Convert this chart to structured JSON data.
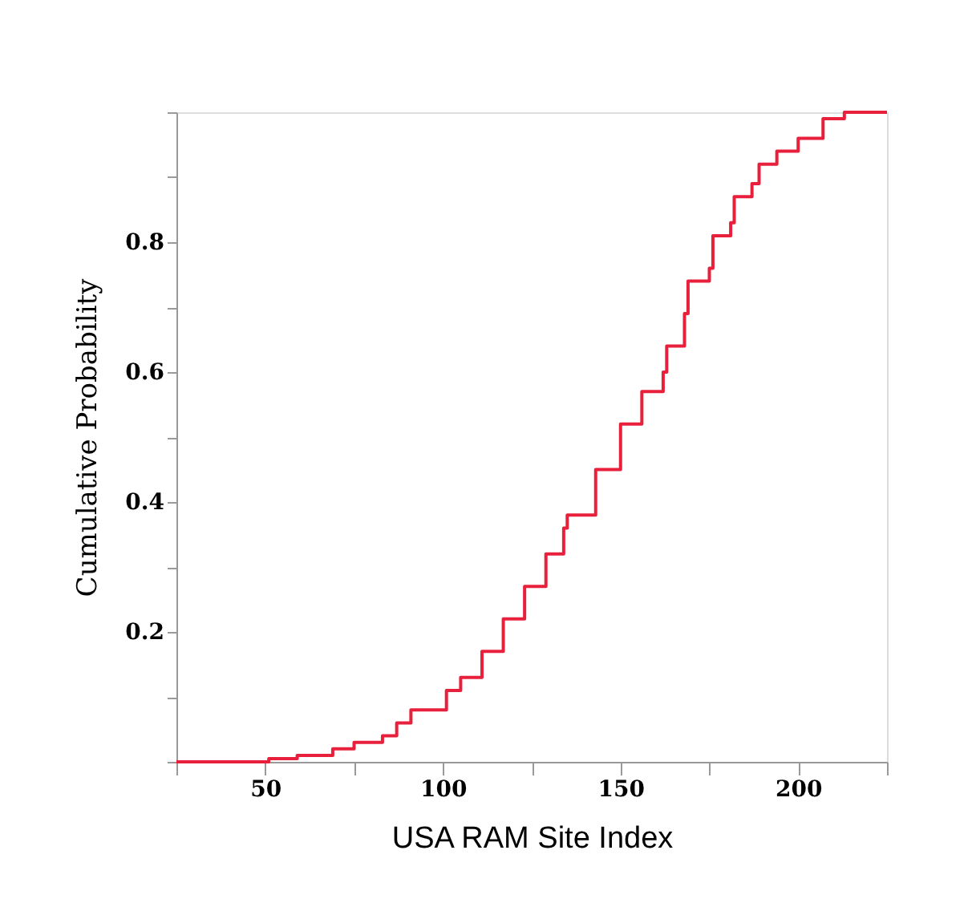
{
  "chart_data": {
    "type": "step",
    "xlabel": "USA RAM Site Index",
    "ylabel": "Cumulative Probability",
    "x": [
      25,
      50,
      51,
      59,
      69,
      75,
      83,
      87,
      91,
      101,
      105,
      111,
      117,
      123,
      129,
      134,
      135,
      143,
      150,
      156,
      162,
      163,
      168,
      169,
      175,
      176,
      181,
      182,
      187,
      189,
      194,
      200,
      207,
      213,
      219,
      225
    ],
    "series": [
      {
        "color": "#e8203c",
        "values": [
          0,
          0,
          0.005,
          0.01,
          0.02,
          0.03,
          0.04,
          0.06,
          0.08,
          0.11,
          0.13,
          0.17,
          0.22,
          0.27,
          0.32,
          0.36,
          0.38,
          0.45,
          0.52,
          0.57,
          0.6,
          0.64,
          0.69,
          0.74,
          0.76,
          0.81,
          0.83,
          0.87,
          0.89,
          0.92,
          0.94,
          0.96,
          0.99,
          1.0,
          1.0,
          1.0
        ]
      }
    ],
    "xlim": [
      25,
      225
    ],
    "ylim": [
      0,
      1
    ],
    "xticks": [
      {
        "value": 25,
        "label": null
      },
      50,
      {
        "value": 75,
        "label": null
      },
      100,
      {
        "value": 125,
        "label": null
      },
      150,
      {
        "value": 175,
        "label": null
      },
      200,
      {
        "value": 225,
        "label": null
      }
    ],
    "yticks": [
      {
        "value": 0,
        "label": null
      },
      {
        "value": 0.1,
        "label": null
      },
      0.2,
      {
        "value": 0.3,
        "label": null
      },
      0.4,
      {
        "value": 0.5,
        "label": null
      },
      0.6,
      {
        "value": 0.7,
        "label": null
      },
      0.8,
      {
        "value": 0.9,
        "label": null
      },
      {
        "value": 1.0,
        "label": null
      }
    ],
    "grid": false,
    "marker": "none",
    "line_style": "solid"
  }
}
